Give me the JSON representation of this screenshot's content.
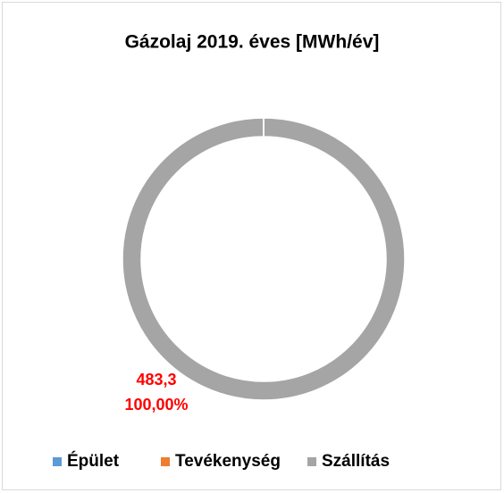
{
  "chart_data": {
    "type": "donut",
    "title": "Gázolaj 2019. éves [MWh/év]",
    "categories": [
      "Épület",
      "Tevékenység",
      "Szállítás"
    ],
    "values": [
      0,
      0,
      483.3
    ],
    "value_labels": [
      null,
      null,
      "483,3"
    ],
    "percents": [
      0,
      0,
      100
    ],
    "percent_labels": [
      null,
      null,
      "100,00%"
    ],
    "colors": [
      "#5b9bd5",
      "#ed7d31",
      "#a5a5a5"
    ],
    "label_color": "#ff0000"
  }
}
